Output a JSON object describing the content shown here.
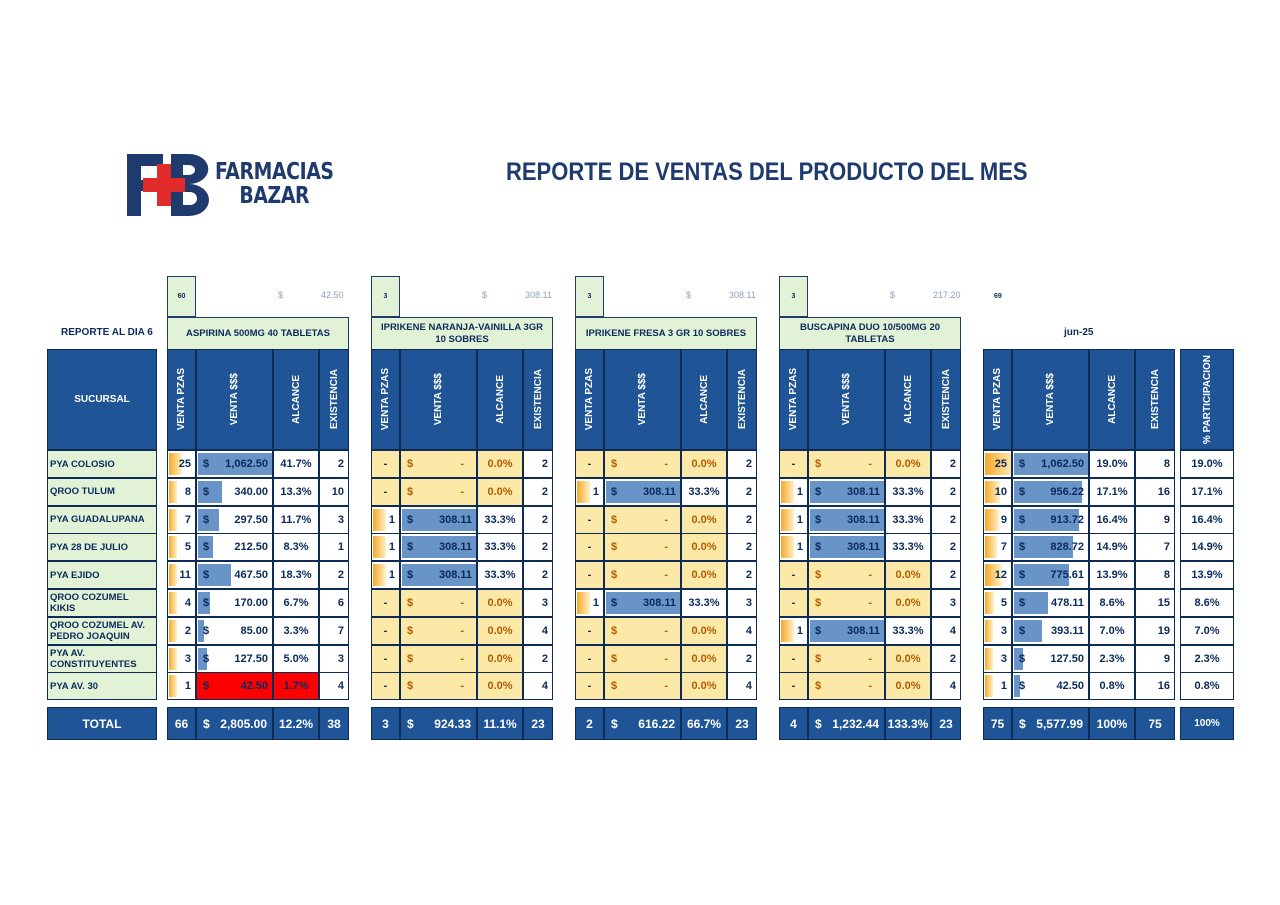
{
  "logo": {
    "line1": "FARMACIAS",
    "line2": "BAZAR"
  },
  "title": "REPORTE DE VENTAS DEL PRODUCTO DEL MES",
  "report_day": "REPORTE AL DIA  6",
  "month": "jun-25",
  "sucursal_header": "SUCURSAL",
  "total_label": "TOTAL",
  "col_headers": {
    "pzas": "VENTA PZAS",
    "dinero": "VENTA $$$",
    "alcance": "ALCANCE",
    "existencia": "EXISTENCIA",
    "participacion": "%  PARTICIPACION"
  },
  "colors": {
    "dark_blue": "#1f5496",
    "light_green": "#e2f2d7",
    "yellow": "#fce9a8",
    "red": "#ff0000",
    "bar_blue": "#4f81bd",
    "orange": "#f7a928"
  },
  "branches": [
    "PYA COLOSIO",
    "QROO TULUM",
    "PYA GUADALUPANA",
    "PYA 28 DE JULIO",
    "PYA EJIDO",
    "QROO COZUMEL KIKIS",
    "QROO COZUMEL AV. PEDRO JOAQUIN",
    "PYA AV. CONSTITUYENTES",
    "PYA AV. 30"
  ],
  "products": [
    {
      "name": "ASPIRINA 500MG 40 TABLETAS",
      "goal": "60",
      "price_sign": "$",
      "price": "42.50",
      "rows": [
        {
          "pzas": "25",
          "sign": "$",
          "venta": "1,062.50",
          "alcance": "41.7%",
          "exist": "2",
          "pz_frac": 1.0,
          "v_frac": 1.0,
          "hl": "w"
        },
        {
          "pzas": "8",
          "sign": "$",
          "venta": "340.00",
          "alcance": "13.3%",
          "exist": "10",
          "pz_frac": 0.32,
          "v_frac": 0.32,
          "hl": "w"
        },
        {
          "pzas": "7",
          "sign": "$",
          "venta": "297.50",
          "alcance": "11.7%",
          "exist": "3",
          "pz_frac": 0.28,
          "v_frac": 0.28,
          "hl": "w"
        },
        {
          "pzas": "5",
          "sign": "$",
          "venta": "212.50",
          "alcance": "8.3%",
          "exist": "1",
          "pz_frac": 0.2,
          "v_frac": 0.2,
          "hl": "w"
        },
        {
          "pzas": "11",
          "sign": "$",
          "venta": "467.50",
          "alcance": "18.3%",
          "exist": "2",
          "pz_frac": 0.44,
          "v_frac": 0.44,
          "hl": "w"
        },
        {
          "pzas": "4",
          "sign": "$",
          "venta": "170.00",
          "alcance": "6.7%",
          "exist": "6",
          "pz_frac": 0.16,
          "v_frac": 0.16,
          "hl": "w"
        },
        {
          "pzas": "2",
          "sign": "$",
          "venta": "85.00",
          "alcance": "3.3%",
          "exist": "7",
          "pz_frac": 0.08,
          "v_frac": 0.08,
          "hl": "w"
        },
        {
          "pzas": "3",
          "sign": "$",
          "venta": "127.50",
          "alcance": "5.0%",
          "exist": "3",
          "pz_frac": 0.12,
          "v_frac": 0.12,
          "hl": "w"
        },
        {
          "pzas": "1",
          "sign": "$",
          "venta": "42.50",
          "alcance": "1.7%",
          "exist": "4",
          "pz_frac": 0.04,
          "v_frac": 0.04,
          "hl": "r"
        }
      ],
      "total": {
        "pzas": "66",
        "sign": "$",
        "venta": "2,805.00",
        "alcance": "12.2%",
        "exist": "38"
      }
    },
    {
      "name": "IPRIKENE NARANJA-VAINILLA 3GR 10 SOBRES",
      "goal": "3",
      "price_sign": "$",
      "price": "308.11",
      "rows": [
        {
          "pzas": "-",
          "sign": "$",
          "venta": "-",
          "alcance": "0.0%",
          "exist": "2",
          "pz_frac": 0,
          "v_frac": 0,
          "hl": "y"
        },
        {
          "pzas": "-",
          "sign": "$",
          "venta": "-",
          "alcance": "0.0%",
          "exist": "2",
          "pz_frac": 0,
          "v_frac": 0,
          "hl": "y"
        },
        {
          "pzas": "1",
          "sign": "$",
          "venta": "308.11",
          "alcance": "33.3%",
          "exist": "2",
          "pz_frac": 1.0,
          "v_frac": 1.0,
          "hl": "w"
        },
        {
          "pzas": "1",
          "sign": "$",
          "venta": "308.11",
          "alcance": "33.3%",
          "exist": "2",
          "pz_frac": 1.0,
          "v_frac": 1.0,
          "hl": "w"
        },
        {
          "pzas": "1",
          "sign": "$",
          "venta": "308.11",
          "alcance": "33.3%",
          "exist": "2",
          "pz_frac": 1.0,
          "v_frac": 1.0,
          "hl": "w"
        },
        {
          "pzas": "-",
          "sign": "$",
          "venta": "-",
          "alcance": "0.0%",
          "exist": "3",
          "pz_frac": 0,
          "v_frac": 0,
          "hl": "y"
        },
        {
          "pzas": "-",
          "sign": "$",
          "venta": "-",
          "alcance": "0.0%",
          "exist": "4",
          "pz_frac": 0,
          "v_frac": 0,
          "hl": "y"
        },
        {
          "pzas": "-",
          "sign": "$",
          "venta": "-",
          "alcance": "0.0%",
          "exist": "2",
          "pz_frac": 0,
          "v_frac": 0,
          "hl": "y"
        },
        {
          "pzas": "-",
          "sign": "$",
          "venta": "-",
          "alcance": "0.0%",
          "exist": "4",
          "pz_frac": 0,
          "v_frac": 0,
          "hl": "y"
        }
      ],
      "total": {
        "pzas": "3",
        "sign": "$",
        "venta": "924.33",
        "alcance": "11.1%",
        "exist": "23"
      }
    },
    {
      "name": "IPRIKENE FRESA 3 GR 10 SOBRES",
      "goal": "3",
      "price_sign": "$",
      "price": "308.11",
      "rows": [
        {
          "pzas": "-",
          "sign": "$",
          "venta": "-",
          "alcance": "0.0%",
          "exist": "2",
          "pz_frac": 0,
          "v_frac": 0,
          "hl": "y"
        },
        {
          "pzas": "1",
          "sign": "$",
          "venta": "308.11",
          "alcance": "33.3%",
          "exist": "2",
          "pz_frac": 1.0,
          "v_frac": 1.0,
          "hl": "w"
        },
        {
          "pzas": "-",
          "sign": "$",
          "venta": "-",
          "alcance": "0.0%",
          "exist": "2",
          "pz_frac": 0,
          "v_frac": 0,
          "hl": "y"
        },
        {
          "pzas": "-",
          "sign": "$",
          "venta": "-",
          "alcance": "0.0%",
          "exist": "2",
          "pz_frac": 0,
          "v_frac": 0,
          "hl": "y"
        },
        {
          "pzas": "-",
          "sign": "$",
          "venta": "-",
          "alcance": "0.0%",
          "exist": "2",
          "pz_frac": 0,
          "v_frac": 0,
          "hl": "y"
        },
        {
          "pzas": "1",
          "sign": "$",
          "venta": "308.11",
          "alcance": "33.3%",
          "exist": "3",
          "pz_frac": 1.0,
          "v_frac": 1.0,
          "hl": "w"
        },
        {
          "pzas": "-",
          "sign": "$",
          "venta": "-",
          "alcance": "0.0%",
          "exist": "4",
          "pz_frac": 0,
          "v_frac": 0,
          "hl": "y"
        },
        {
          "pzas": "-",
          "sign": "$",
          "venta": "-",
          "alcance": "0.0%",
          "exist": "2",
          "pz_frac": 0,
          "v_frac": 0,
          "hl": "y"
        },
        {
          "pzas": "-",
          "sign": "$",
          "venta": "-",
          "alcance": "0.0%",
          "exist": "4",
          "pz_frac": 0,
          "v_frac": 0,
          "hl": "y"
        }
      ],
      "total": {
        "pzas": "2",
        "sign": "$",
        "venta": "616.22",
        "alcance": "66.7%",
        "exist": "23"
      }
    },
    {
      "name": "BUSCAPINA DUO 10/500MG 20 TABLETAS",
      "goal": "3",
      "price_sign": "$",
      "price": "217.20",
      "rows": [
        {
          "pzas": "-",
          "sign": "$",
          "venta": "-",
          "alcance": "0.0%",
          "exist": "2",
          "pz_frac": 0,
          "v_frac": 0,
          "hl": "y"
        },
        {
          "pzas": "1",
          "sign": "$",
          "venta": "308.11",
          "alcance": "33.3%",
          "exist": "2",
          "pz_frac": 1.0,
          "v_frac": 1.0,
          "hl": "w"
        },
        {
          "pzas": "1",
          "sign": "$",
          "venta": "308.11",
          "alcance": "33.3%",
          "exist": "2",
          "pz_frac": 1.0,
          "v_frac": 1.0,
          "hl": "w"
        },
        {
          "pzas": "1",
          "sign": "$",
          "venta": "308.11",
          "alcance": "33.3%",
          "exist": "2",
          "pz_frac": 1.0,
          "v_frac": 1.0,
          "hl": "w"
        },
        {
          "pzas": "-",
          "sign": "$",
          "venta": "-",
          "alcance": "0.0%",
          "exist": "2",
          "pz_frac": 0,
          "v_frac": 0,
          "hl": "y"
        },
        {
          "pzas": "-",
          "sign": "$",
          "venta": "-",
          "alcance": "0.0%",
          "exist": "3",
          "pz_frac": 0,
          "v_frac": 0,
          "hl": "y"
        },
        {
          "pzas": "1",
          "sign": "$",
          "venta": "308.11",
          "alcance": "33.3%",
          "exist": "4",
          "pz_frac": 1.0,
          "v_frac": 1.0,
          "hl": "w"
        },
        {
          "pzas": "-",
          "sign": "$",
          "venta": "-",
          "alcance": "0.0%",
          "exist": "2",
          "pz_frac": 0,
          "v_frac": 0,
          "hl": "y"
        },
        {
          "pzas": "-",
          "sign": "$",
          "venta": "-",
          "alcance": "0.0%",
          "exist": "4",
          "pz_frac": 0,
          "v_frac": 0,
          "hl": "y"
        }
      ],
      "total": {
        "pzas": "4",
        "sign": "$",
        "venta": "1,232.44",
        "alcance": "133.3%",
        "exist": "23"
      }
    }
  ],
  "summary": {
    "goal": "69",
    "rows": [
      {
        "pzas": "25",
        "sign": "$",
        "venta": "1,062.50",
        "alcance": "19.0%",
        "exist": "8",
        "part": "19.0%",
        "pz_frac": 1.0,
        "v_frac": 1.0
      },
      {
        "pzas": "10",
        "sign": "$",
        "venta": "956.22",
        "alcance": "17.1%",
        "exist": "16",
        "part": "17.1%",
        "pz_frac": 0.4,
        "v_frac": 0.9
      },
      {
        "pzas": "9",
        "sign": "$",
        "venta": "913.72",
        "alcance": "16.4%",
        "exist": "9",
        "part": "16.4%",
        "pz_frac": 0.36,
        "v_frac": 0.86
      },
      {
        "pzas": "7",
        "sign": "$",
        "venta": "828.72",
        "alcance": "14.9%",
        "exist": "7",
        "part": "14.9%",
        "pz_frac": 0.28,
        "v_frac": 0.78
      },
      {
        "pzas": "12",
        "sign": "$",
        "venta": "775.61",
        "alcance": "13.9%",
        "exist": "8",
        "part": "13.9%",
        "pz_frac": 0.48,
        "v_frac": 0.73
      },
      {
        "pzas": "5",
        "sign": "$",
        "venta": "478.11",
        "alcance": "8.6%",
        "exist": "15",
        "part": "8.6%",
        "pz_frac": 0.2,
        "v_frac": 0.45
      },
      {
        "pzas": "3",
        "sign": "$",
        "venta": "393.11",
        "alcance": "7.0%",
        "exist": "19",
        "part": "7.0%",
        "pz_frac": 0.12,
        "v_frac": 0.37
      },
      {
        "pzas": "3",
        "sign": "$",
        "venta": "127.50",
        "alcance": "2.3%",
        "exist": "9",
        "part": "2.3%",
        "pz_frac": 0.12,
        "v_frac": 0.12
      },
      {
        "pzas": "1",
        "sign": "$",
        "venta": "42.50",
        "alcance": "0.8%",
        "exist": "16",
        "part": "0.8%",
        "pz_frac": 0.04,
        "v_frac": 0.04
      }
    ],
    "total": {
      "pzas": "75",
      "sign": "$",
      "venta": "5,577.99",
      "alcance": "100%",
      "exist": "75",
      "part": "100%"
    }
  }
}
